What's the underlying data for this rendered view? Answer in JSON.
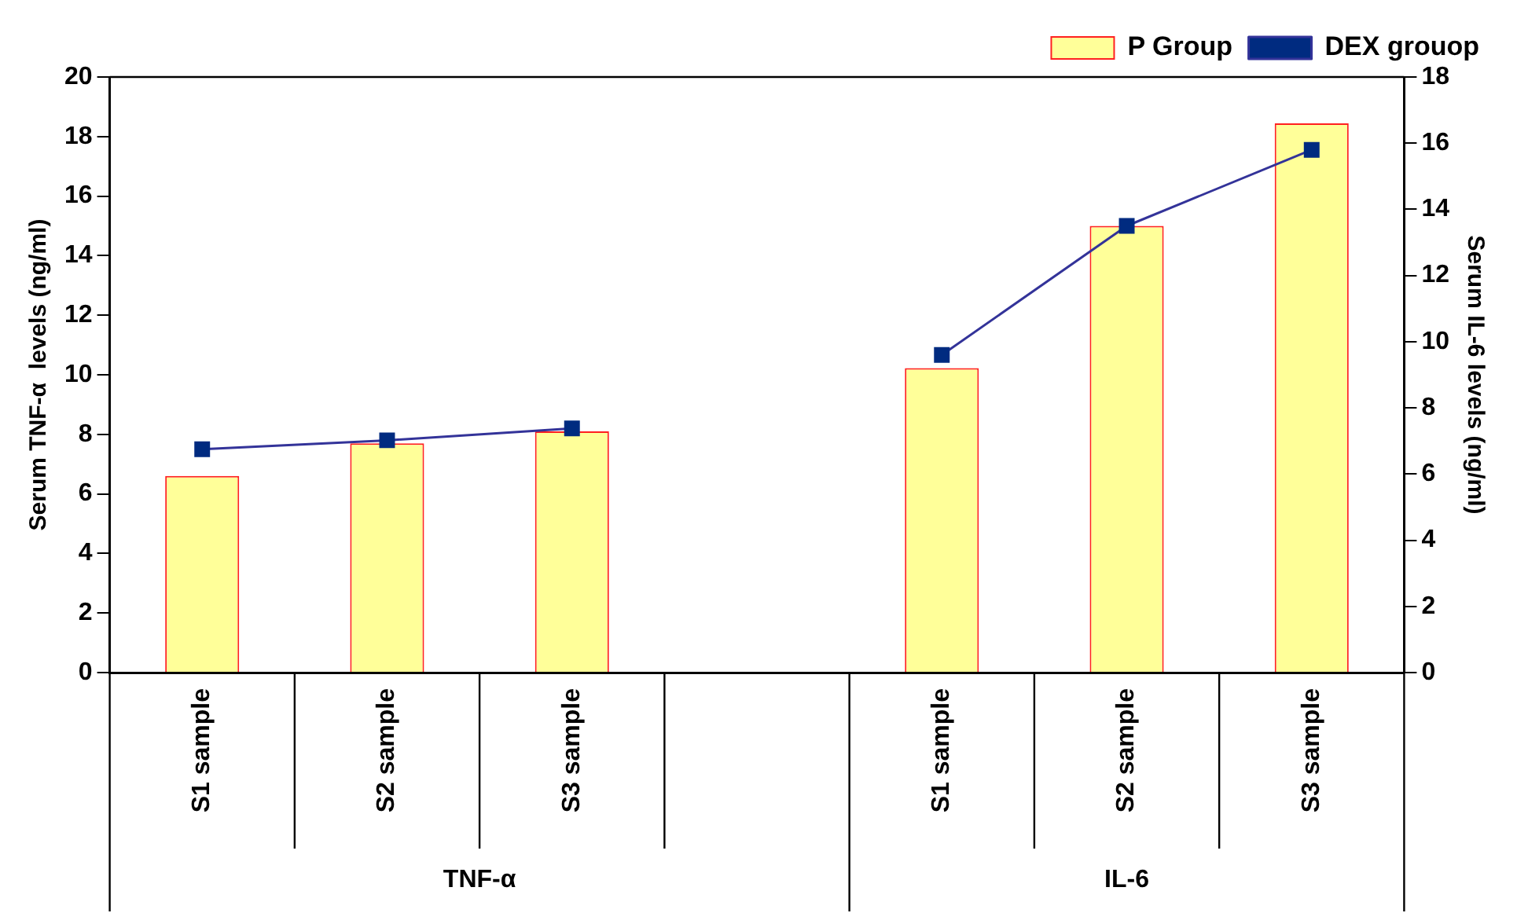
{
  "chart_data": {
    "type": "bar",
    "categories": [
      "S1 sample",
      "S2 sample",
      "S3 sample",
      null,
      "S1 sample",
      "S2 sample",
      "S3 sample"
    ],
    "series": [
      {
        "name": "P Group",
        "color": "#ffff99",
        "values": [
          6.6,
          7.7,
          8.1,
          null,
          null,
          null,
          null
        ]
      },
      {
        "color": "#ffff99",
        "axis": "y2",
        "values": [
          null,
          null,
          null,
          null,
          9.2,
          13.5,
          16.6
        ]
      },
      {
        "name": "DEX grouop",
        "type": "line",
        "color": "#333399",
        "values": [
          7.5,
          7.8,
          8.2,
          null,
          null,
          null,
          null
        ]
      },
      {
        "type": "line",
        "color": "#333399",
        "axis": "y2",
        "values": [
          null,
          null,
          null,
          null,
          9.6,
          13.5,
          15.8
        ]
      }
    ],
    "ylabel": "Serum TNF-α  levels (ng/ml)",
    "y2label": "Serum IL-6 levels (ng/ml)",
    "ylim": [
      0,
      20
    ],
    "yticks": [
      0,
      2,
      4,
      6,
      8,
      10,
      12,
      14,
      16,
      18,
      20
    ],
    "y2lim": [
      0,
      18
    ],
    "y2ticks": [
      0,
      2,
      4,
      6,
      8,
      10,
      12,
      14,
      16,
      18
    ],
    "annotations": [
      "TNF-α",
      "IL-6"
    ],
    "grid": false,
    "legend": "top right",
    "marker": "square",
    "line_style": "solid"
  }
}
